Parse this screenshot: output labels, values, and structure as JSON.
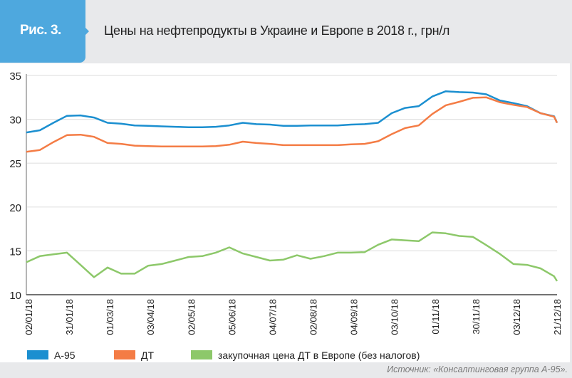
{
  "header": {
    "figure_label": "Рис. 3.",
    "title": "Цены на нефтепродукты в Украине и Европе в 2018 г., грн/л"
  },
  "source": "Источник: «Консалтинговая группа А-95».",
  "colors": {
    "badge": "#4ea8de",
    "header_bg": "#e8e9eb"
  },
  "chart_data": {
    "type": "line",
    "title": "Цены на нефтепродукты в Украине и Европе в 2018 г., грн/л",
    "xlabel": "",
    "ylabel": "",
    "ylim": [
      10,
      35
    ],
    "yticks": [
      10,
      15,
      20,
      25,
      30,
      35
    ],
    "xlim": [
      "2018-01-02",
      "2018-12-21"
    ],
    "xtick_labels": [
      "02/01/18",
      "31/01/18",
      "01/03/18",
      "03/04/18",
      "02/05/18",
      "05/06/18",
      "04/07/18",
      "02/08/18",
      "04/09/18",
      "03/10/18",
      "01/11/18",
      "30/11/18",
      "03/12/18",
      "21/12/18"
    ],
    "grid": "horizontal",
    "legend_position": "bottom",
    "x": [
      "2018-01-02",
      "2018-01-11",
      "2018-01-20",
      "2018-01-29",
      "2018-02-07",
      "2018-02-16",
      "2018-02-25",
      "2018-03-06",
      "2018-03-15",
      "2018-03-24",
      "2018-04-02",
      "2018-04-11",
      "2018-04-20",
      "2018-04-29",
      "2018-05-08",
      "2018-05-17",
      "2018-05-26",
      "2018-06-04",
      "2018-06-13",
      "2018-06-22",
      "2018-07-01",
      "2018-07-10",
      "2018-07-19",
      "2018-07-28",
      "2018-08-06",
      "2018-08-15",
      "2018-08-24",
      "2018-09-02",
      "2018-09-11",
      "2018-09-20",
      "2018-09-29",
      "2018-10-08",
      "2018-10-17",
      "2018-10-26",
      "2018-11-04",
      "2018-11-13",
      "2018-11-22",
      "2018-12-01",
      "2018-12-10",
      "2018-12-19",
      "2018-12-21"
    ],
    "series": [
      {
        "name": "А-95",
        "color": "#1b8fd0",
        "values": [
          28.5,
          28.75,
          29.6,
          30.4,
          30.45,
          30.2,
          29.6,
          29.5,
          29.3,
          29.25,
          29.2,
          29.15,
          29.1,
          29.1,
          29.15,
          29.3,
          29.6,
          29.45,
          29.4,
          29.25,
          29.25,
          29.3,
          29.3,
          29.3,
          29.4,
          29.45,
          29.6,
          30.7,
          31.3,
          31.5,
          32.6,
          33.2,
          33.1,
          33.05,
          32.85,
          32.15,
          31.85,
          31.5,
          30.7,
          30.35,
          29.6
        ]
      },
      {
        "name": "ДТ",
        "color": "#f47c45",
        "values": [
          26.3,
          26.5,
          27.4,
          28.2,
          28.25,
          28.0,
          27.3,
          27.2,
          27.0,
          26.95,
          26.9,
          26.9,
          26.9,
          26.9,
          26.95,
          27.1,
          27.45,
          27.3,
          27.2,
          27.05,
          27.05,
          27.05,
          27.05,
          27.05,
          27.15,
          27.2,
          27.5,
          28.3,
          29.0,
          29.3,
          30.6,
          31.6,
          32.0,
          32.45,
          32.5,
          31.95,
          31.65,
          31.4,
          30.7,
          30.3,
          29.6
        ]
      },
      {
        "name": "закупочная цена ДТ в Европе (без налогов)",
        "color": "#8dc86a",
        "values": [
          13.7,
          14.4,
          14.6,
          14.8,
          13.4,
          12.0,
          13.1,
          12.4,
          12.4,
          13.3,
          13.5,
          13.9,
          14.3,
          14.4,
          14.8,
          15.4,
          14.7,
          14.3,
          13.9,
          14.0,
          14.5,
          14.1,
          14.4,
          14.8,
          14.8,
          14.85,
          15.7,
          16.3,
          16.2,
          16.1,
          17.1,
          17.0,
          16.7,
          16.6,
          15.65,
          14.65,
          13.5,
          13.4,
          13.0,
          12.1,
          11.55
        ]
      }
    ]
  }
}
